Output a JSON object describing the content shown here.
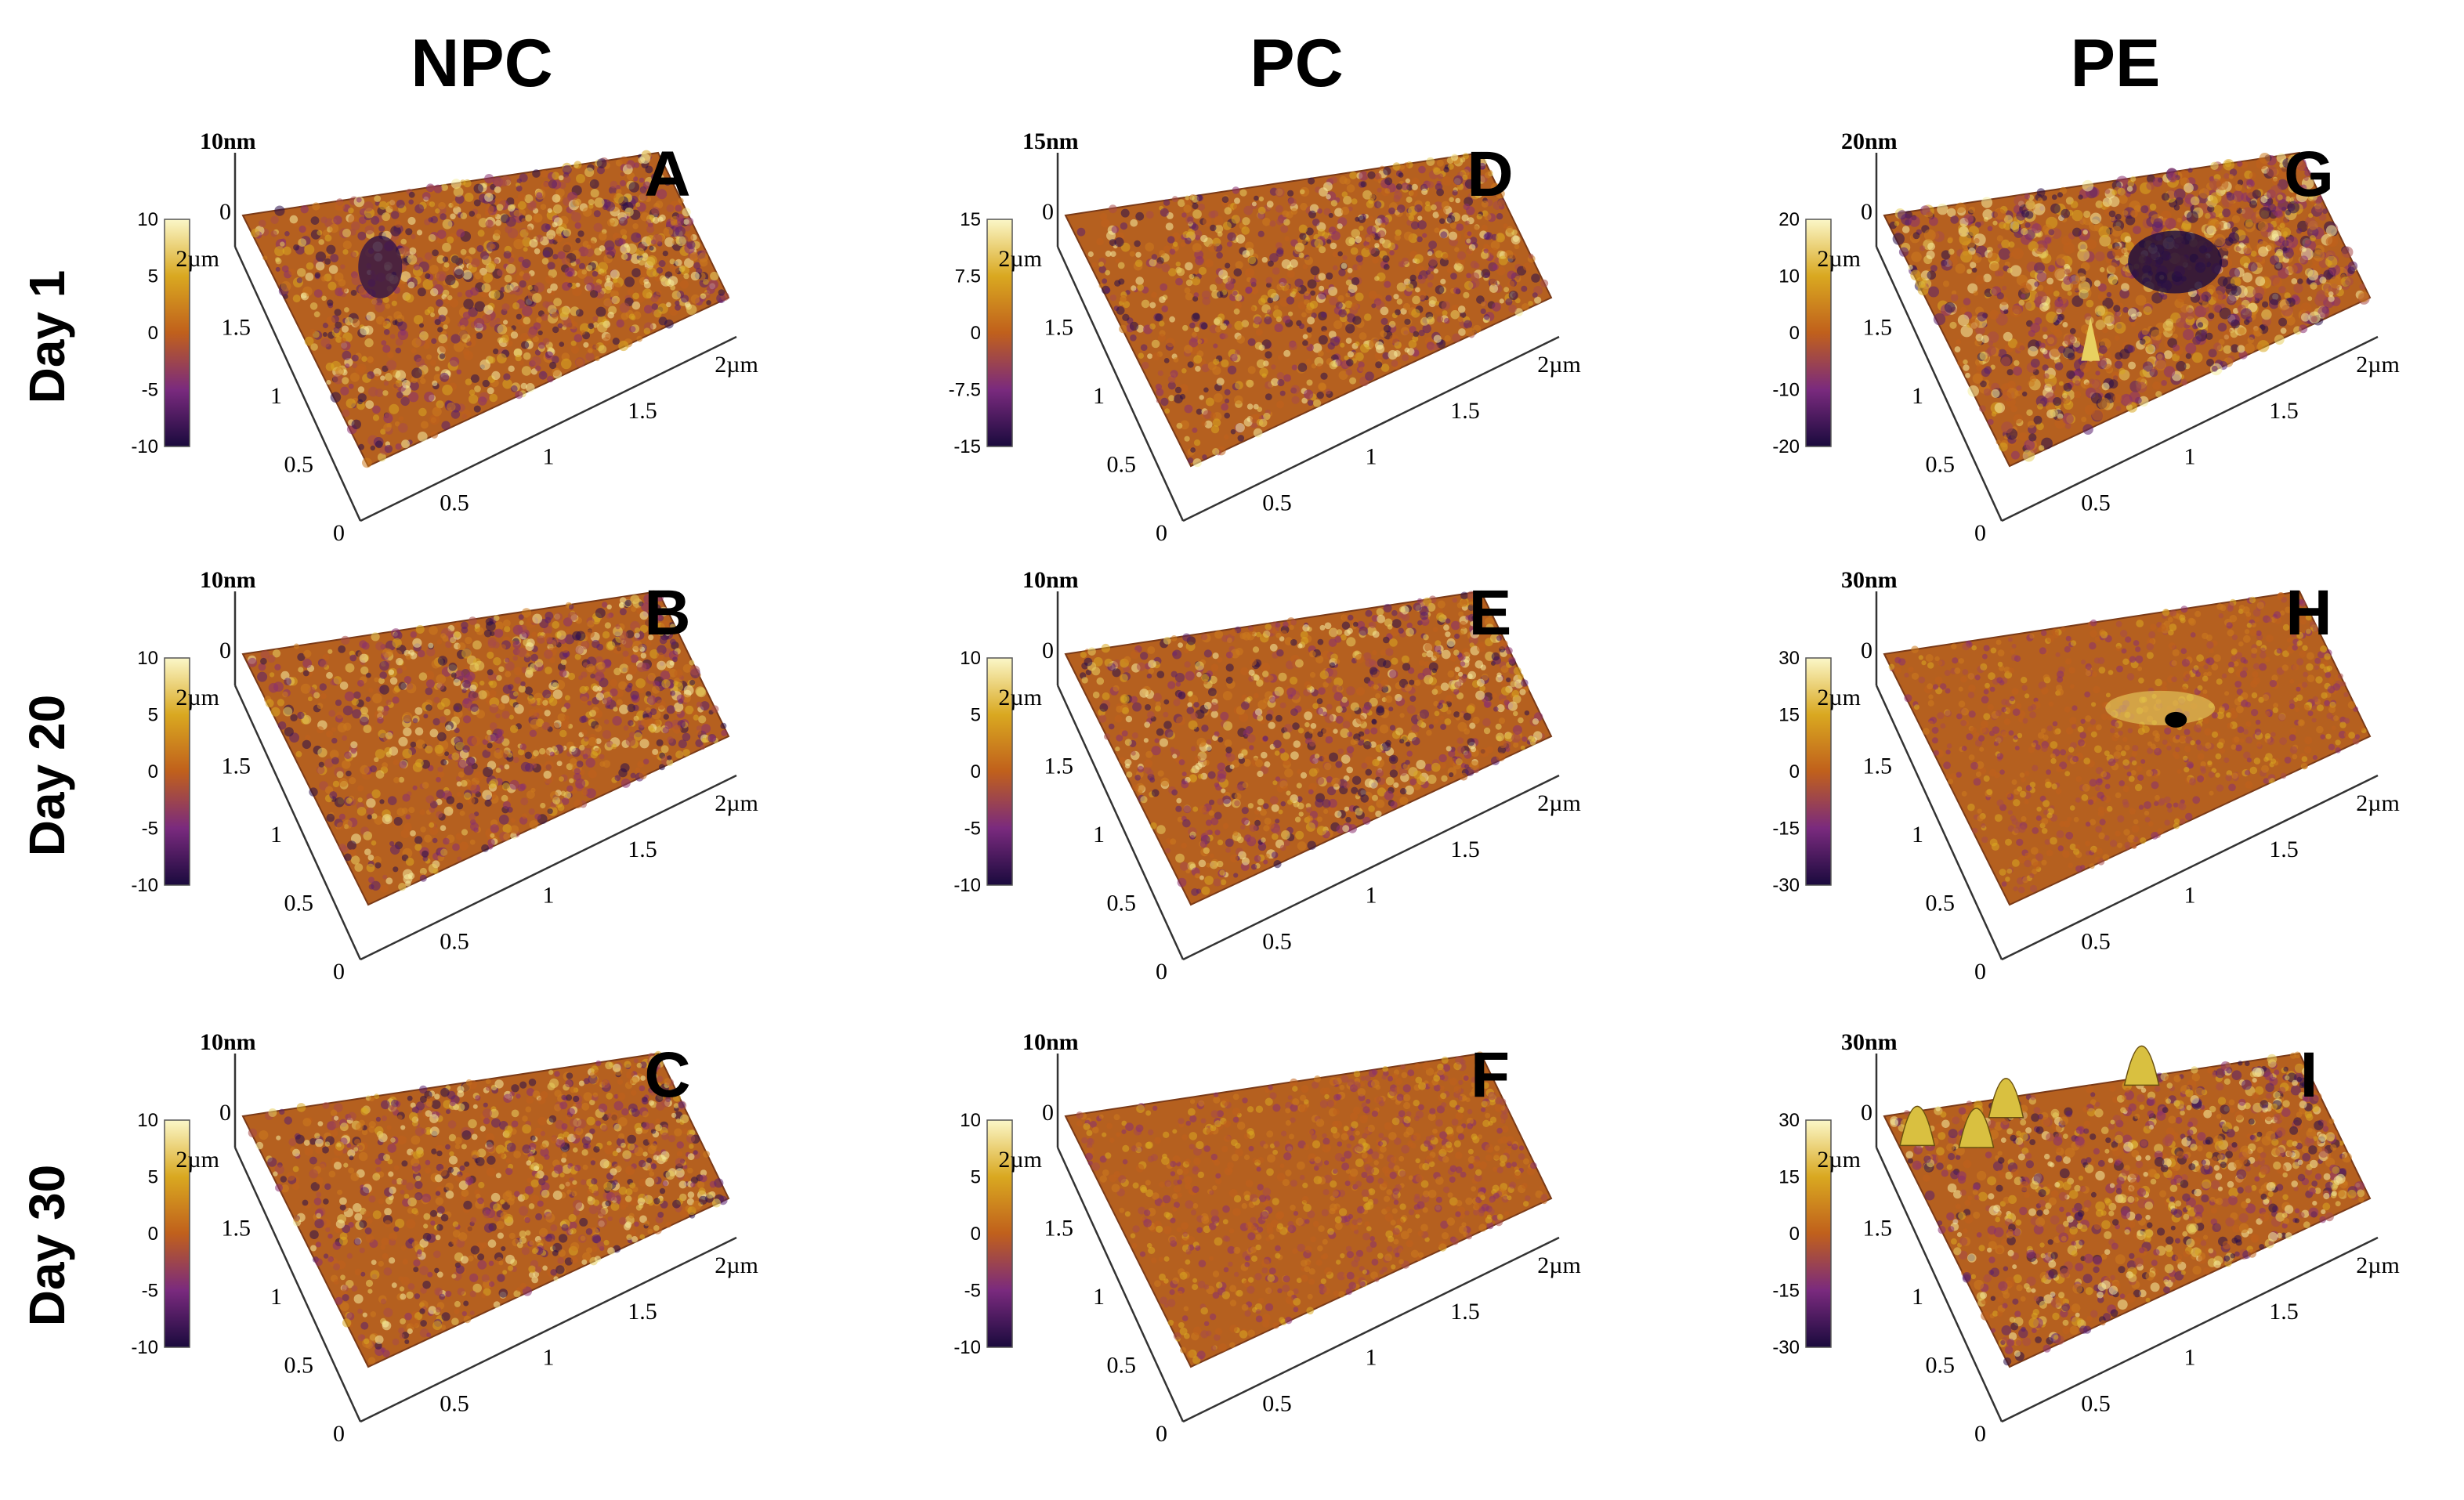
{
  "figure": {
    "columns": [
      "NPC",
      "PC",
      "PE"
    ],
    "rows": [
      "Day 1",
      "Day 20",
      "Day 30"
    ],
    "colors": {
      "low": "#1a0a3d",
      "mid_low": "#7a2a7e",
      "mid": "#c0601c",
      "mid_high": "#d9a820",
      "high": "#fbf7c8"
    },
    "panels": [
      {
        "letter": "A",
        "material": "NPC",
        "day": "Day 1",
        "z_label": "10nm",
        "scale_ticks": [
          "10",
          "5",
          "0",
          "-5",
          "-10"
        ],
        "roughness": 0.55,
        "features": "pits"
      },
      {
        "letter": "B",
        "material": "NPC",
        "day": "Day 20",
        "z_label": "10nm",
        "scale_ticks": [
          "10",
          "5",
          "0",
          "-5",
          "-10"
        ],
        "roughness": 0.5,
        "features": "rough"
      },
      {
        "letter": "C",
        "material": "NPC",
        "day": "Day 30",
        "z_label": "10nm",
        "scale_ticks": [
          "10",
          "5",
          "0",
          "-5",
          "-10"
        ],
        "roughness": 0.45,
        "features": "rough"
      },
      {
        "letter": "D",
        "material": "PC",
        "day": "Day 1",
        "z_label": "15nm",
        "scale_ticks": [
          "15",
          "7.5",
          "0",
          "-7.5",
          "-15"
        ],
        "roughness": 0.45,
        "features": "rough"
      },
      {
        "letter": "E",
        "material": "PC",
        "day": "Day 20",
        "z_label": "10nm",
        "scale_ticks": [
          "10",
          "5",
          "0",
          "-5",
          "-10"
        ],
        "roughness": 0.45,
        "features": "rough"
      },
      {
        "letter": "F",
        "material": "PC",
        "day": "Day 30",
        "z_label": "10nm",
        "scale_ticks": [
          "10",
          "5",
          "0",
          "-5",
          "-10"
        ],
        "roughness": 0.35,
        "features": "flat"
      },
      {
        "letter": "G",
        "material": "PE",
        "day": "Day 1",
        "z_label": "20nm",
        "scale_ticks": [
          "20",
          "10",
          "0",
          "-10",
          "-20"
        ],
        "roughness": 0.7,
        "features": "ridge"
      },
      {
        "letter": "H",
        "material": "PE",
        "day": "Day 20",
        "z_label": "30nm",
        "scale_ticks": [
          "30",
          "15",
          "0",
          "-15",
          "-30"
        ],
        "roughness": 0.3,
        "features": "smooth"
      },
      {
        "letter": "I",
        "material": "PE",
        "day": "Day 30",
        "z_label": "30nm",
        "scale_ticks": [
          "30",
          "15",
          "0",
          "-15",
          "-30"
        ],
        "roughness": 0.5,
        "features": "peaks"
      }
    ],
    "xy_ticks": {
      "left_axis": [
        "2µm",
        "1.5",
        "1",
        "0.5",
        "0"
      ],
      "bottom_axis": [
        "0.5",
        "1",
        "1.5",
        "2µm"
      ],
      "top_zero": "0"
    }
  }
}
